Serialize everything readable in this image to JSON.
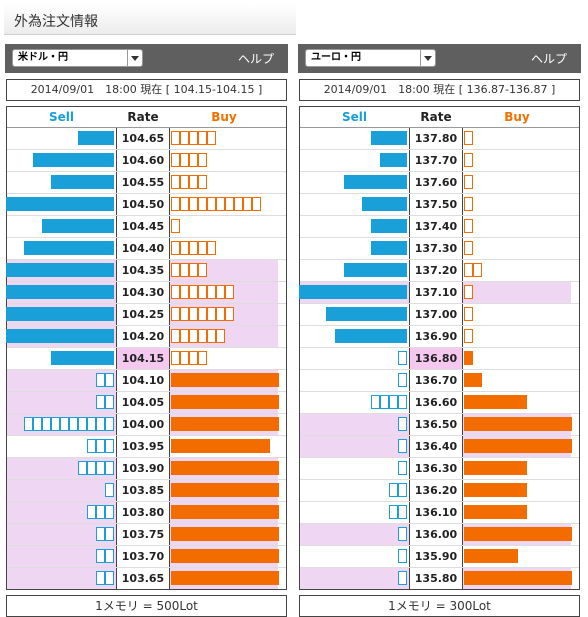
{
  "page_title": "外為注文情報",
  "help_label": "ヘルプ",
  "headers": {
    "sell": "Sell",
    "rate": "Rate",
    "buy": "Buy"
  },
  "colors": {
    "sell": "#1aa0d8",
    "buy": "#f36c00",
    "highlight": "#efd6f2",
    "current_rate_bg": "#f5c8f0"
  },
  "panels": [
    {
      "pair": "米ドル・円",
      "status": "2014/09/01　18:00 現在 [ 104.15-104.15 ]",
      "footer": "1メモリ = 500Lot",
      "rows": [
        {
          "rate": "104.65",
          "sell": 4,
          "sell_style": "filled",
          "buy": 5,
          "buy_style": "outline",
          "hl": false,
          "current": false
        },
        {
          "rate": "104.60",
          "sell": 9,
          "sell_style": "filled",
          "buy": 4,
          "buy_style": "outline",
          "hl": false,
          "current": false
        },
        {
          "rate": "104.55",
          "sell": 7,
          "sell_style": "filled",
          "buy": 4,
          "buy_style": "outline",
          "hl": false,
          "current": false
        },
        {
          "rate": "104.50",
          "sell": 12,
          "sell_style": "filled",
          "buy": 10,
          "buy_style": "outline",
          "hl": false,
          "current": false
        },
        {
          "rate": "104.45",
          "sell": 8,
          "sell_style": "filled",
          "buy": 1,
          "buy_style": "outline",
          "hl": false,
          "current": false
        },
        {
          "rate": "104.40",
          "sell": 10,
          "sell_style": "filled",
          "buy": 5,
          "buy_style": "outline",
          "hl": false,
          "current": false
        },
        {
          "rate": "104.35",
          "sell": 12,
          "sell_style": "filled",
          "buy": 4,
          "buy_style": "outline",
          "hl": true,
          "current": false
        },
        {
          "rate": "104.30",
          "sell": 12,
          "sell_style": "filled",
          "buy": 7,
          "buy_style": "outline",
          "hl": true,
          "current": false
        },
        {
          "rate": "104.25",
          "sell": 12,
          "sell_style": "filled",
          "buy": 7,
          "buy_style": "outline",
          "hl": true,
          "current": false
        },
        {
          "rate": "104.20",
          "sell": 12,
          "sell_style": "filled",
          "buy": 6,
          "buy_style": "outline",
          "hl": true,
          "current": false
        },
        {
          "rate": "104.15",
          "sell": 7,
          "sell_style": "filled",
          "buy": 4,
          "buy_style": "outline",
          "hl": false,
          "current": true
        },
        {
          "rate": "104.10",
          "sell": 2,
          "sell_style": "outline",
          "buy": 12,
          "buy_style": "filled",
          "hl": true,
          "current": false
        },
        {
          "rate": "104.05",
          "sell": 2,
          "sell_style": "outline",
          "buy": 12,
          "buy_style": "filled",
          "hl": true,
          "current": false
        },
        {
          "rate": "104.00",
          "sell": 10,
          "sell_style": "outline",
          "buy": 12,
          "buy_style": "filled",
          "hl": true,
          "current": false
        },
        {
          "rate": "103.95",
          "sell": 3,
          "sell_style": "outline",
          "buy": 11,
          "buy_style": "filled",
          "hl": false,
          "current": false
        },
        {
          "rate": "103.90",
          "sell": 4,
          "sell_style": "outline",
          "buy": 12,
          "buy_style": "filled",
          "hl": true,
          "current": false
        },
        {
          "rate": "103.85",
          "sell": 1,
          "sell_style": "outline",
          "buy": 12,
          "buy_style": "filled",
          "hl": true,
          "current": false
        },
        {
          "rate": "103.80",
          "sell": 3,
          "sell_style": "outline",
          "buy": 12,
          "buy_style": "filled",
          "hl": true,
          "current": false
        },
        {
          "rate": "103.75",
          "sell": 2,
          "sell_style": "outline",
          "buy": 12,
          "buy_style": "filled",
          "hl": true,
          "current": false
        },
        {
          "rate": "103.70",
          "sell": 2,
          "sell_style": "outline",
          "buy": 12,
          "buy_style": "filled",
          "hl": true,
          "current": false
        },
        {
          "rate": "103.65",
          "sell": 2,
          "sell_style": "outline",
          "buy": 12,
          "buy_style": "filled",
          "hl": true,
          "current": false
        }
      ]
    },
    {
      "pair": "ユーロ・円",
      "status": "2014/09/01　18:00 現在 [ 136.87-136.87 ]",
      "footer": "1メモリ = 300Lot",
      "rows": [
        {
          "rate": "137.80",
          "sell": 4,
          "sell_style": "filled",
          "buy": 1,
          "buy_style": "outline",
          "hl": false,
          "current": false
        },
        {
          "rate": "137.70",
          "sell": 3,
          "sell_style": "filled",
          "buy": 1,
          "buy_style": "outline",
          "hl": false,
          "current": false
        },
        {
          "rate": "137.60",
          "sell": 7,
          "sell_style": "filled",
          "buy": 1,
          "buy_style": "outline",
          "hl": false,
          "current": false
        },
        {
          "rate": "137.50",
          "sell": 5,
          "sell_style": "filled",
          "buy": 1,
          "buy_style": "outline",
          "hl": false,
          "current": false
        },
        {
          "rate": "137.40",
          "sell": 4,
          "sell_style": "filled",
          "buy": 1,
          "buy_style": "outline",
          "hl": false,
          "current": false
        },
        {
          "rate": "137.30",
          "sell": 4,
          "sell_style": "filled",
          "buy": 1,
          "buy_style": "outline",
          "hl": false,
          "current": false
        },
        {
          "rate": "137.20",
          "sell": 7,
          "sell_style": "filled",
          "buy": 2,
          "buy_style": "outline",
          "hl": false,
          "current": false
        },
        {
          "rate": "137.10",
          "sell": 12,
          "sell_style": "filled",
          "buy": 1,
          "buy_style": "outline",
          "hl": true,
          "current": false
        },
        {
          "rate": "137.00",
          "sell": 9,
          "sell_style": "filled",
          "buy": 1,
          "buy_style": "outline",
          "hl": false,
          "current": false
        },
        {
          "rate": "136.90",
          "sell": 8,
          "sell_style": "filled",
          "buy": 1,
          "buy_style": "outline",
          "hl": false,
          "current": false
        },
        {
          "rate": "136.80",
          "sell": 1,
          "sell_style": "outline",
          "buy": 1,
          "buy_style": "filled",
          "hl": false,
          "current": true
        },
        {
          "rate": "136.70",
          "sell": 1,
          "sell_style": "outline",
          "buy": 2,
          "buy_style": "filled",
          "hl": false,
          "current": false
        },
        {
          "rate": "136.60",
          "sell": 4,
          "sell_style": "outline",
          "buy": 7,
          "buy_style": "filled",
          "hl": false,
          "current": false
        },
        {
          "rate": "136.50",
          "sell": 1,
          "sell_style": "outline",
          "buy": 12,
          "buy_style": "filled",
          "hl": true,
          "current": false
        },
        {
          "rate": "136.40",
          "sell": 1,
          "sell_style": "outline",
          "buy": 12,
          "buy_style": "filled",
          "hl": true,
          "current": false
        },
        {
          "rate": "136.30",
          "sell": 1,
          "sell_style": "outline",
          "buy": 7,
          "buy_style": "filled",
          "hl": false,
          "current": false
        },
        {
          "rate": "136.20",
          "sell": 2,
          "sell_style": "outline",
          "buy": 7,
          "buy_style": "filled",
          "hl": false,
          "current": false
        },
        {
          "rate": "136.10",
          "sell": 2,
          "sell_style": "outline",
          "buy": 7,
          "buy_style": "filled",
          "hl": false,
          "current": false
        },
        {
          "rate": "136.00",
          "sell": 1,
          "sell_style": "outline",
          "buy": 12,
          "buy_style": "filled",
          "hl": true,
          "current": false
        },
        {
          "rate": "135.90",
          "sell": 1,
          "sell_style": "outline",
          "buy": 6,
          "buy_style": "filled",
          "hl": false,
          "current": false
        },
        {
          "rate": "135.80",
          "sell": 1,
          "sell_style": "outline",
          "buy": 12,
          "buy_style": "filled",
          "hl": true,
          "current": false
        }
      ]
    }
  ]
}
